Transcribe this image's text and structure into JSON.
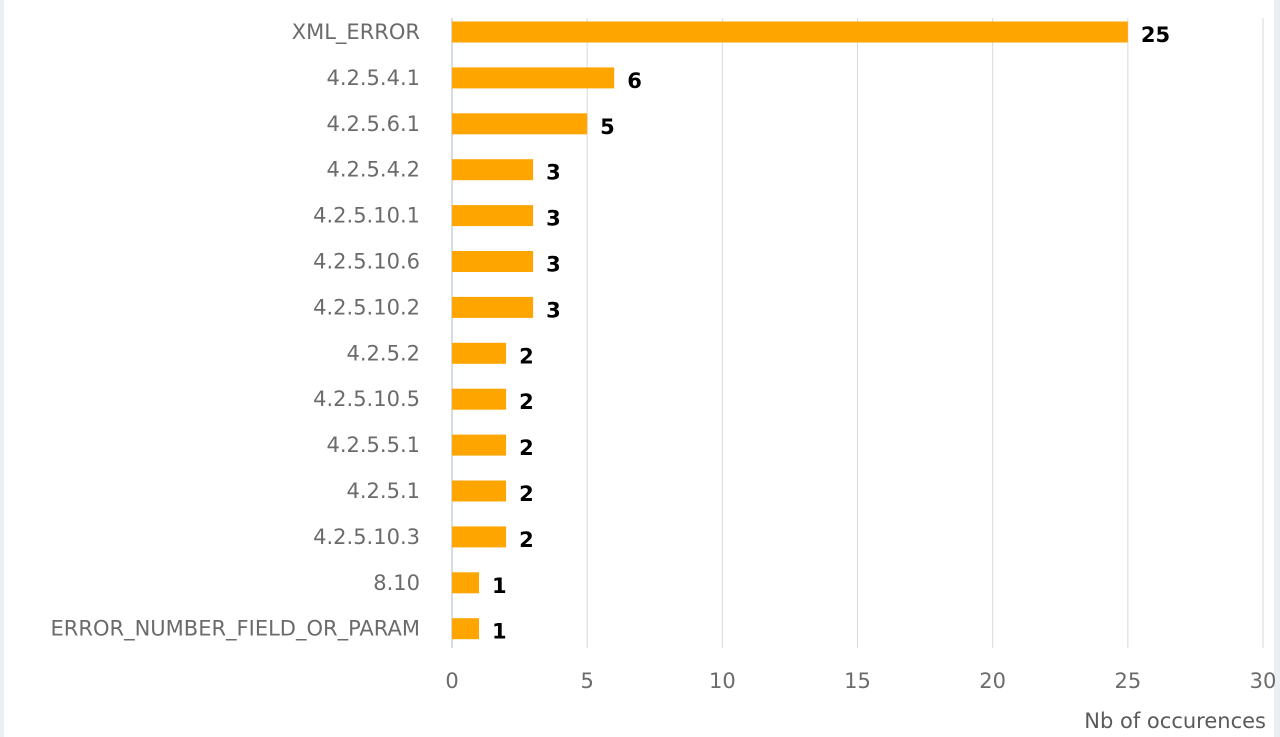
{
  "chart_data": {
    "type": "bar",
    "orientation": "horizontal",
    "categories": [
      "XML_ERROR",
      "4.2.5.4.1",
      "4.2.5.6.1",
      "4.2.5.4.2",
      "4.2.5.10.1",
      "4.2.5.10.6",
      "4.2.5.10.2",
      "4.2.5.2",
      "4.2.5.10.5",
      "4.2.5.5.1",
      "4.2.5.1",
      "4.2.5.10.3",
      "8.10",
      "ERROR_NUMBER_FIELD_OR_PARAM"
    ],
    "values": [
      25,
      6,
      5,
      3,
      3,
      3,
      3,
      2,
      2,
      2,
      2,
      2,
      1,
      1
    ],
    "title": "",
    "xlabel": "Nb of occurences",
    "ylabel": "",
    "xlim": [
      0,
      30
    ],
    "xticks": [
      0,
      5,
      10,
      15,
      20,
      25,
      30
    ],
    "grid": "vertical",
    "legend": "none",
    "data_labels": true,
    "colors": {
      "bar": "#ffa500",
      "grid": "#d9d9d9",
      "axis": "#c8cfe0"
    }
  }
}
